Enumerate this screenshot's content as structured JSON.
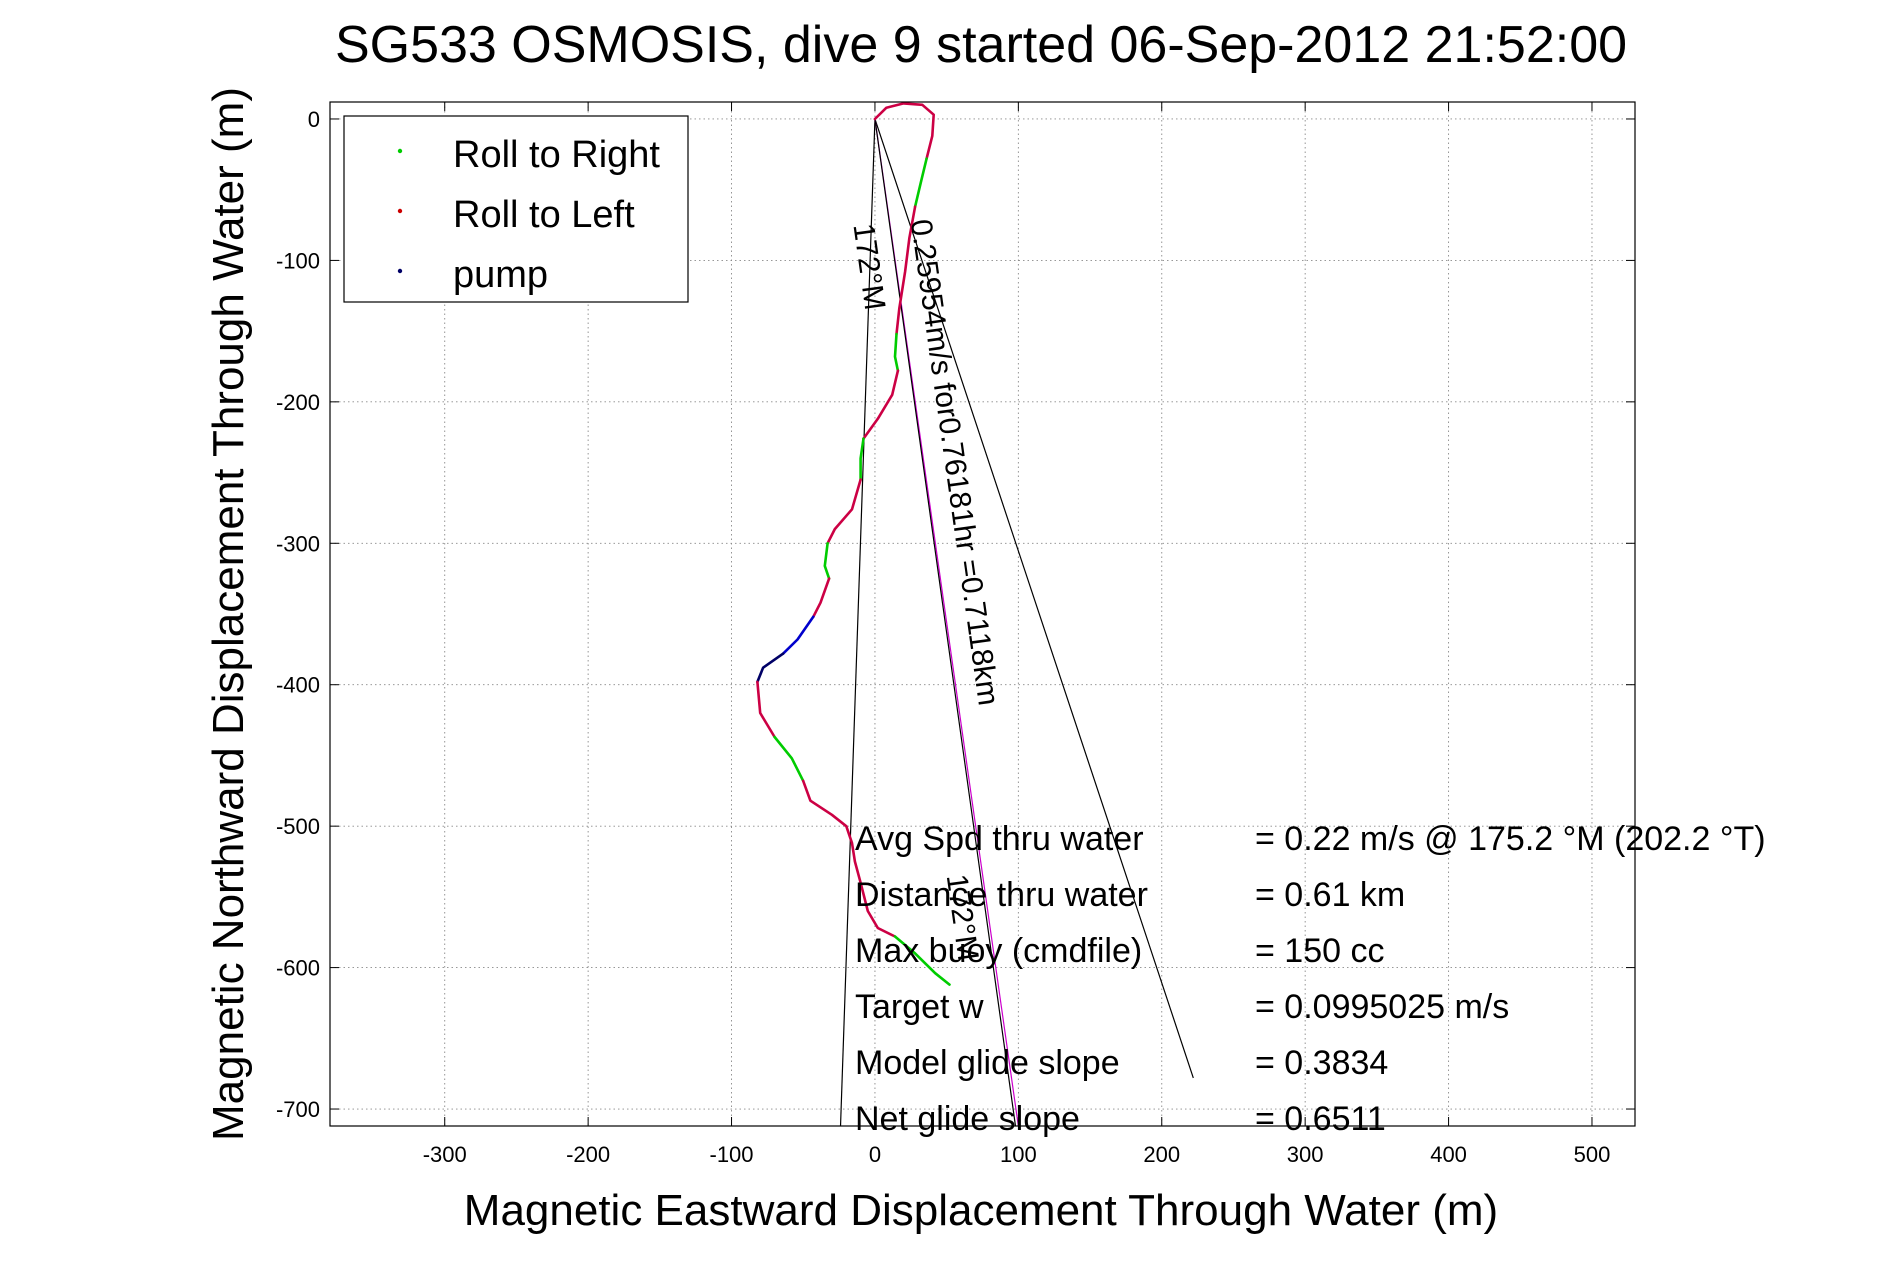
{
  "chart_data": {
    "type": "line",
    "title": "SG533 OSMOSIS, dive 9 started 06-Sep-2012 21:52:00",
    "xlabel": "Magnetic Eastward Displacement Through Water (m)",
    "ylabel": "Magnetic Northward Displacement Through Water (m)",
    "xlim": [
      -380,
      530
    ],
    "ylim": [
      -712,
      12
    ],
    "xticks": [
      -300,
      -200,
      -100,
      0,
      100,
      200,
      300,
      400,
      500
    ],
    "yticks": [
      0,
      -100,
      -200,
      -300,
      -400,
      -500,
      -600,
      -700
    ],
    "grid": true,
    "legend_position": "top-left",
    "legend": [
      {
        "label": "Roll to Right",
        "color": "#00cc00"
      },
      {
        "label": "Roll to Left",
        "color": "#cc0000"
      },
      {
        "label": "pump",
        "color": "#000066"
      }
    ],
    "track": [
      {
        "series": "Roll to Left",
        "color": "#cc0044",
        "points": [
          [
            0,
            0
          ],
          [
            8,
            8
          ],
          [
            20,
            11
          ],
          [
            33,
            10
          ],
          [
            41,
            3
          ],
          [
            40,
            -12
          ],
          [
            36,
            -28
          ]
        ]
      },
      {
        "series": "Roll to Right",
        "color": "#00cc00",
        "points": [
          [
            36,
            -28
          ],
          [
            32,
            -45
          ],
          [
            28,
            -62
          ]
        ]
      },
      {
        "series": "Roll to Left",
        "color": "#cc0044",
        "points": [
          [
            28,
            -62
          ],
          [
            24,
            -84
          ],
          [
            21,
            -108
          ],
          [
            17,
            -134
          ],
          [
            15,
            -152
          ]
        ]
      },
      {
        "series": "Roll to Right",
        "color": "#00cc00",
        "points": [
          [
            15,
            -152
          ],
          [
            14,
            -168
          ],
          [
            16,
            -178
          ]
        ]
      },
      {
        "series": "Roll to Left",
        "color": "#cc0044",
        "points": [
          [
            16,
            -178
          ],
          [
            12,
            -195
          ],
          [
            2,
            -212
          ],
          [
            -8,
            -226
          ]
        ]
      },
      {
        "series": "Roll to Right",
        "color": "#00cc00",
        "points": [
          [
            -8,
            -226
          ],
          [
            -10,
            -240
          ],
          [
            -10,
            -255
          ]
        ]
      },
      {
        "series": "Roll to Left",
        "color": "#cc0044",
        "points": [
          [
            -10,
            -255
          ],
          [
            -16,
            -276
          ],
          [
            -28,
            -290
          ],
          [
            -33,
            -300
          ]
        ]
      },
      {
        "series": "Roll to Right",
        "color": "#00cc00",
        "points": [
          [
            -33,
            -300
          ],
          [
            -35,
            -316
          ],
          [
            -32,
            -325
          ]
        ]
      },
      {
        "series": "Roll to Left",
        "color": "#cc0044",
        "points": [
          [
            -32,
            -325
          ],
          [
            -38,
            -342
          ],
          [
            -43,
            -352
          ]
        ]
      },
      {
        "series": "pump",
        "color": "#0000cc",
        "points": [
          [
            -43,
            -352
          ],
          [
            -54,
            -368
          ],
          [
            -64,
            -378
          ]
        ]
      },
      {
        "series": "pump",
        "color": "#000066",
        "points": [
          [
            -64,
            -378
          ],
          [
            -78,
            -388
          ],
          [
            -82,
            -398
          ]
        ]
      },
      {
        "series": "Roll to Left",
        "color": "#cc0044",
        "points": [
          [
            -82,
            -398
          ],
          [
            -80,
            -420
          ],
          [
            -70,
            -437
          ]
        ]
      },
      {
        "series": "Roll to Right",
        "color": "#00cc00",
        "points": [
          [
            -70,
            -437
          ],
          [
            -58,
            -452
          ],
          [
            -50,
            -468
          ]
        ]
      },
      {
        "series": "Roll to Left",
        "color": "#cc0044",
        "points": [
          [
            -50,
            -468
          ],
          [
            -45,
            -482
          ],
          [
            -30,
            -492
          ],
          [
            -20,
            -500
          ],
          [
            -16,
            -512
          ],
          [
            -14,
            -525
          ],
          [
            -10,
            -540
          ],
          [
            -5,
            -560
          ],
          [
            2,
            -572
          ],
          [
            14,
            -578
          ]
        ]
      },
      {
        "series": "Roll to Right",
        "color": "#00cc00",
        "points": [
          [
            14,
            -578
          ],
          [
            28,
            -590
          ],
          [
            42,
            -604
          ],
          [
            52,
            -612
          ]
        ]
      }
    ],
    "reference_lines": [
      {
        "color": "#000000",
        "from": [
          0,
          0
        ],
        "to": [
          -24,
          -712
        ]
      },
      {
        "color": "#000000",
        "from": [
          0,
          0
        ],
        "to": [
          222,
          -678
        ]
      },
      {
        "color": "#cc00cc",
        "from": [
          0,
          0
        ],
        "to": [
          100,
          -712
        ]
      },
      {
        "color": "#000000",
        "from": [
          0,
          0
        ],
        "to": [
          98,
          -712
        ]
      }
    ],
    "annotations": [
      {
        "text": "172°M",
        "at": [
          -15,
          -75
        ],
        "rotation": 82
      },
      {
        "text": "0.25954m/s for0.76181hr =0.7118km",
        "at": [
          25,
          -72
        ],
        "rotation": 82
      },
      {
        "text": "172°M",
        "at": [
          50,
          -535
        ],
        "rotation": 82
      }
    ],
    "stats": [
      {
        "label": "Avg Spd thru water",
        "value": "=  0.22 m/s @ 175.2 °M (202.2 °T)"
      },
      {
        "label": "Distance thru water",
        "value": "=  0.61 km"
      },
      {
        "label": "Max buoy (cmdfile)",
        "value": "= 150 cc"
      },
      {
        "label": "Target w",
        "value": "= 0.0995025 m/s"
      },
      {
        "label": "Model glide slope",
        "value": "= 0.3834"
      },
      {
        "label": "Net glide slope",
        "value": "= 0.6511"
      }
    ]
  }
}
